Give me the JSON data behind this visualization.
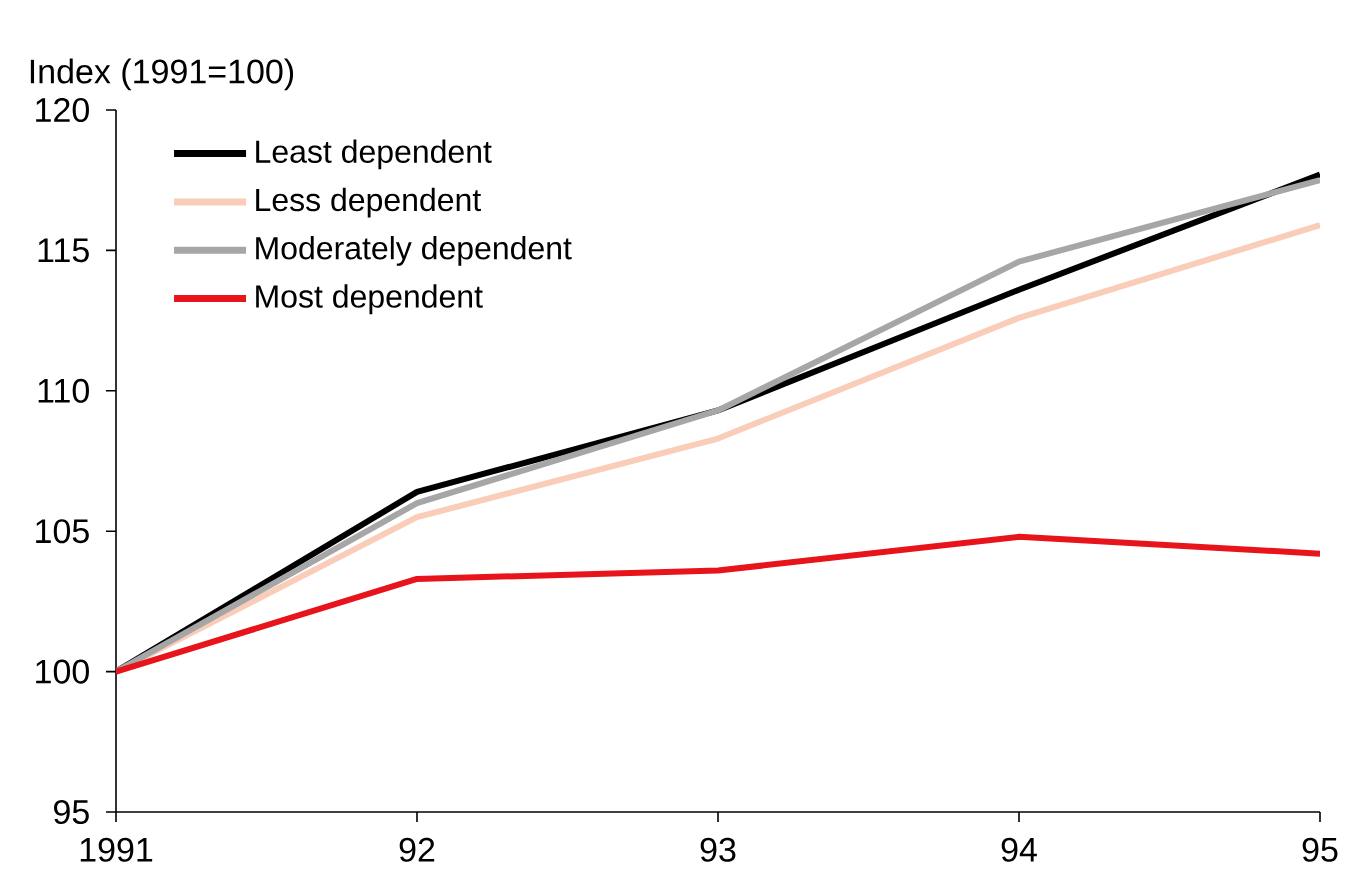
{
  "chart_data": {
    "type": "line",
    "ylabel": "Index (1991=100)",
    "x": [
      1991,
      1992,
      1993,
      1994,
      1995
    ],
    "xlim": [
      1991,
      1995
    ],
    "ylim": [
      95,
      120
    ],
    "xticks": [
      1991,
      {
        "value": 1992,
        "label": "92"
      },
      {
        "value": 1993,
        "label": "93"
      },
      {
        "value": 1994,
        "label": "94"
      },
      {
        "value": 1995,
        "label": "95"
      }
    ],
    "yticks": [
      95,
      100,
      105,
      110,
      115,
      120
    ],
    "series": [
      {
        "name": "Least dependent",
        "color": "#000000",
        "values": [
          100,
          106.4,
          109.3,
          113.6,
          117.7
        ]
      },
      {
        "name": "Less dependent",
        "color": "#f9cdb8",
        "values": [
          100,
          105.5,
          108.3,
          112.6,
          115.9
        ]
      },
      {
        "name": "Moderately dependent",
        "color": "#a6a6a6",
        "values": [
          100,
          106.0,
          109.3,
          114.6,
          117.5
        ]
      },
      {
        "name": "Most dependent",
        "color": "#e8141c",
        "values": [
          100,
          103.3,
          103.6,
          104.8,
          104.2
        ]
      }
    ],
    "grid": false,
    "legend": "top left",
    "marker": "none",
    "line_style": "solid"
  }
}
